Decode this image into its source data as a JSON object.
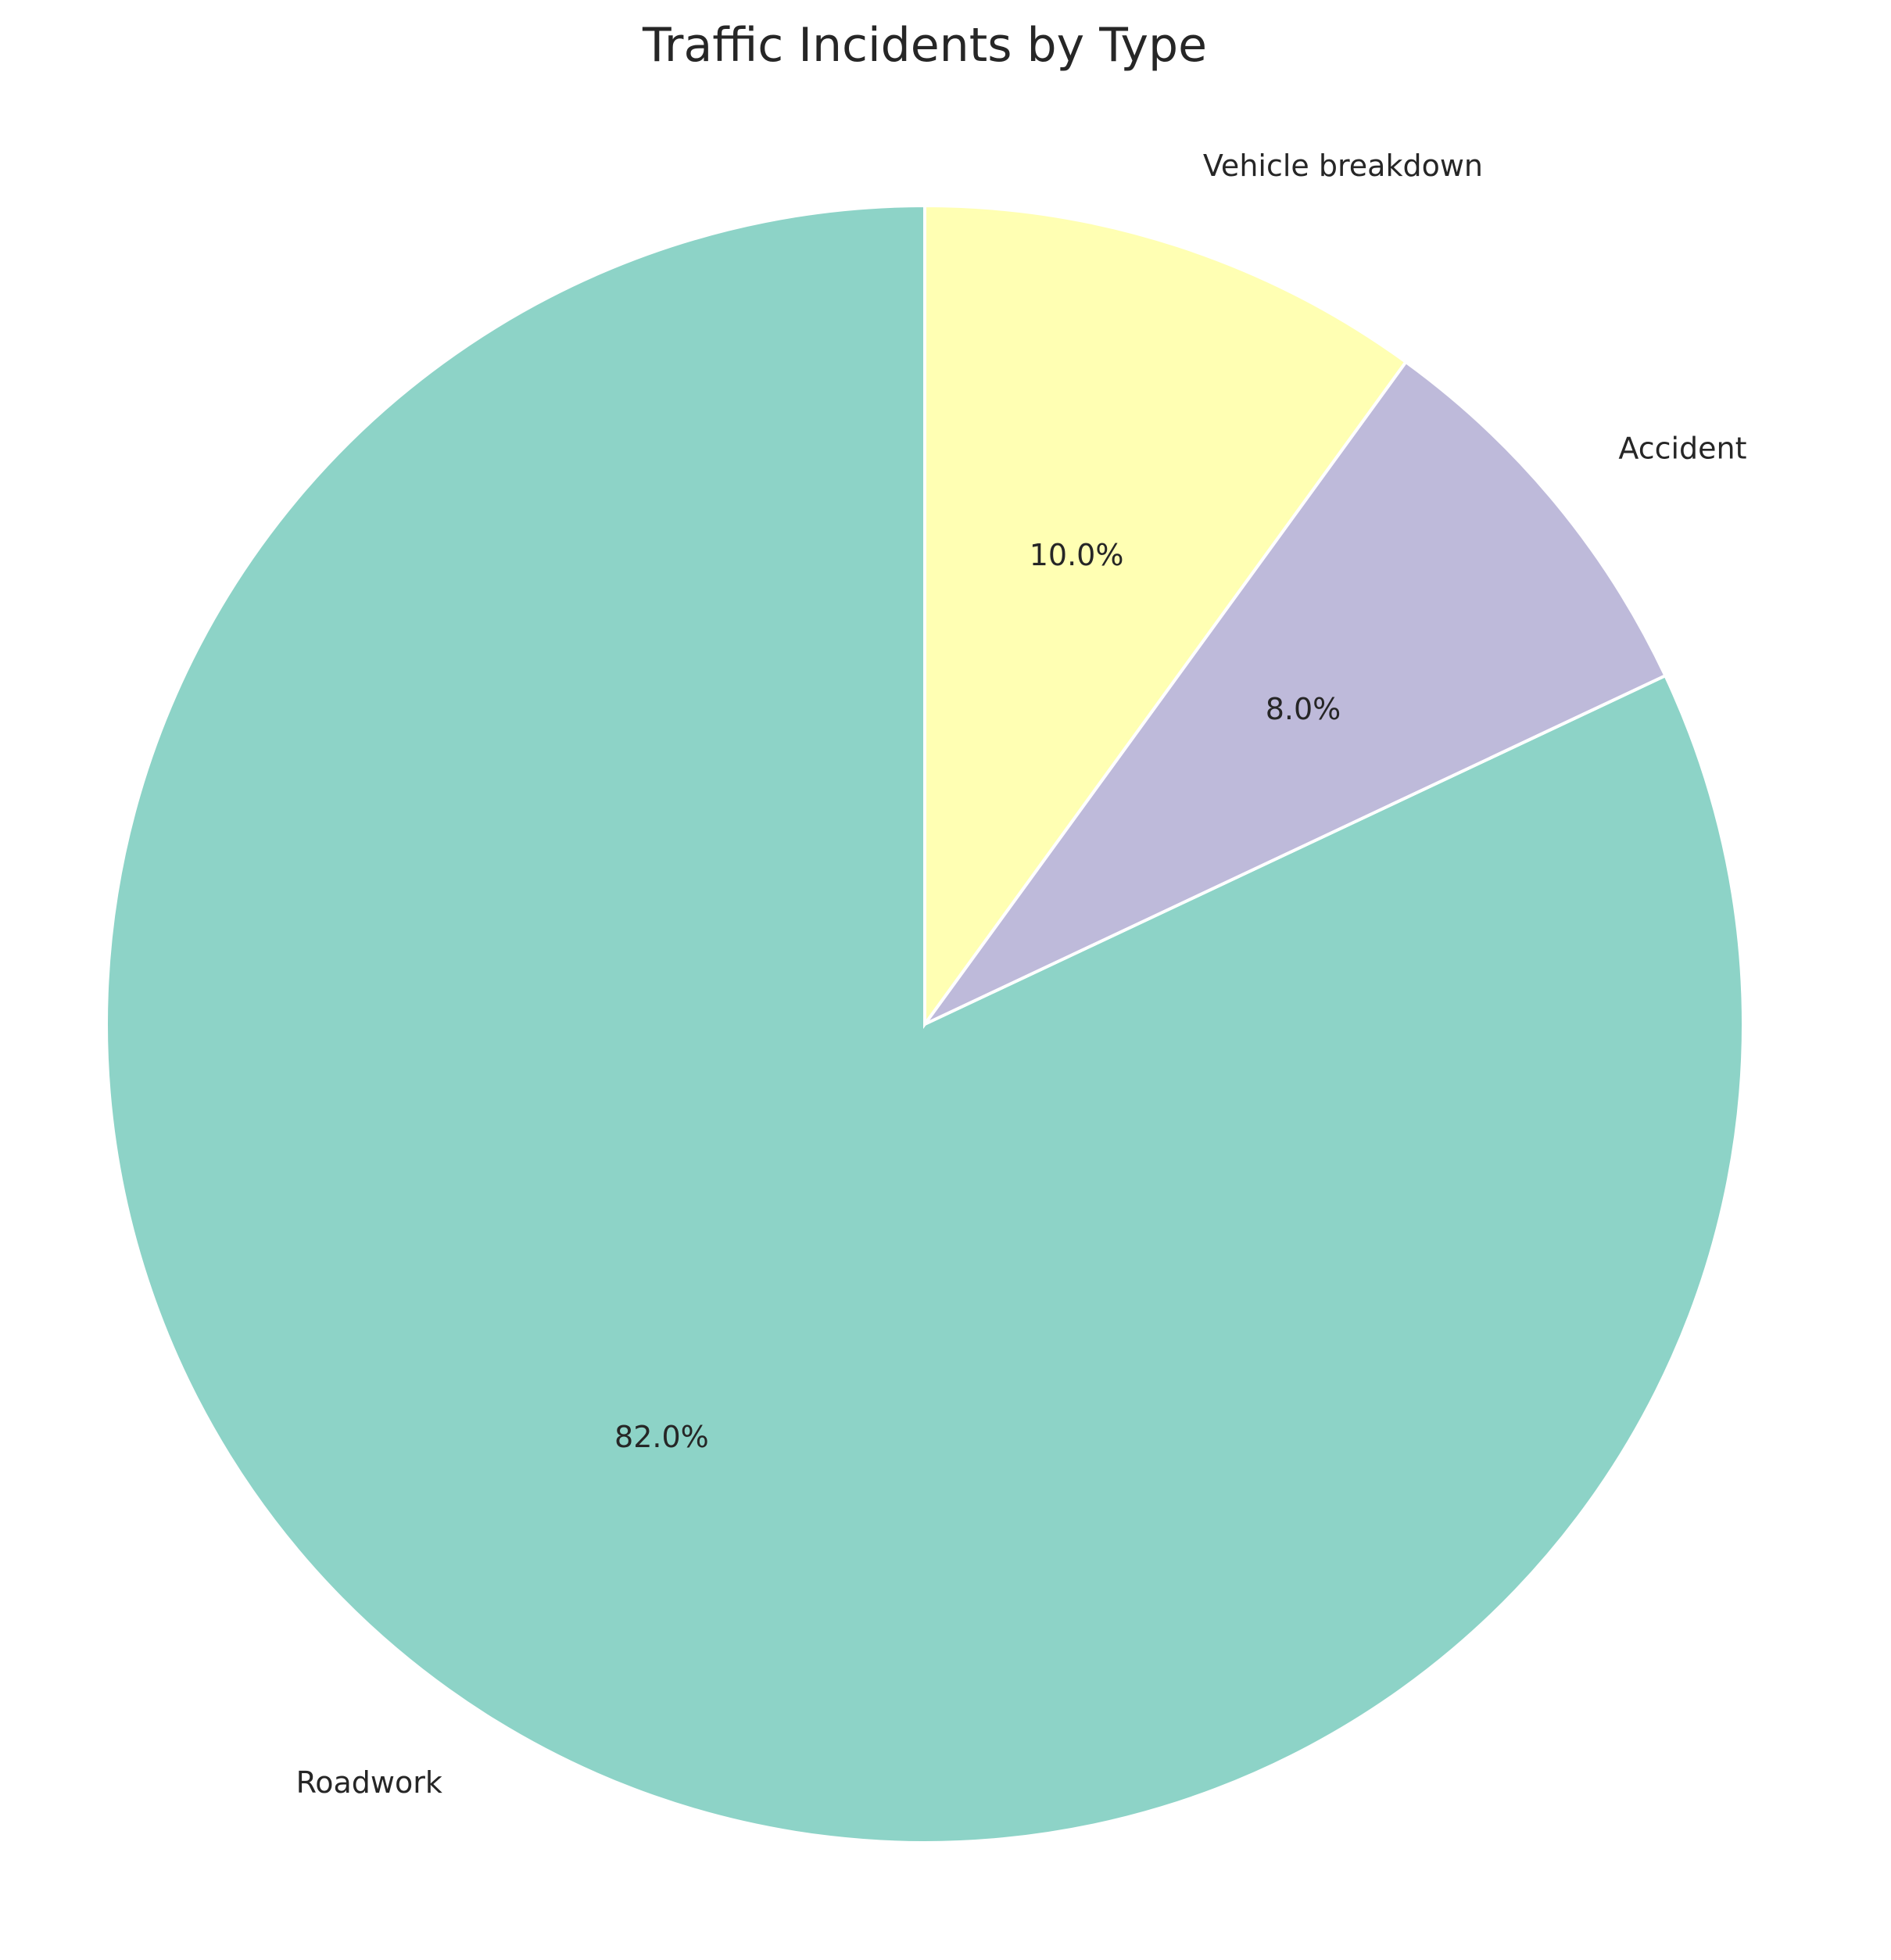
{
  "chart_data": {
    "type": "pie",
    "title": "Traffic Incidents by Type",
    "slices": [
      {
        "label": "Roadwork",
        "value": 82.0,
        "pct_label": "82.0%",
        "color": "#8dd3c7"
      },
      {
        "label": "Accident",
        "value": 8.0,
        "pct_label": "8.0%",
        "color": "#bebada"
      },
      {
        "label": "Vehicle breakdown",
        "value": 10.0,
        "pct_label": "10.0%",
        "color": "#ffffb3"
      }
    ],
    "start_angle": 90,
    "direction": "counterclockwise",
    "legend": "none"
  }
}
